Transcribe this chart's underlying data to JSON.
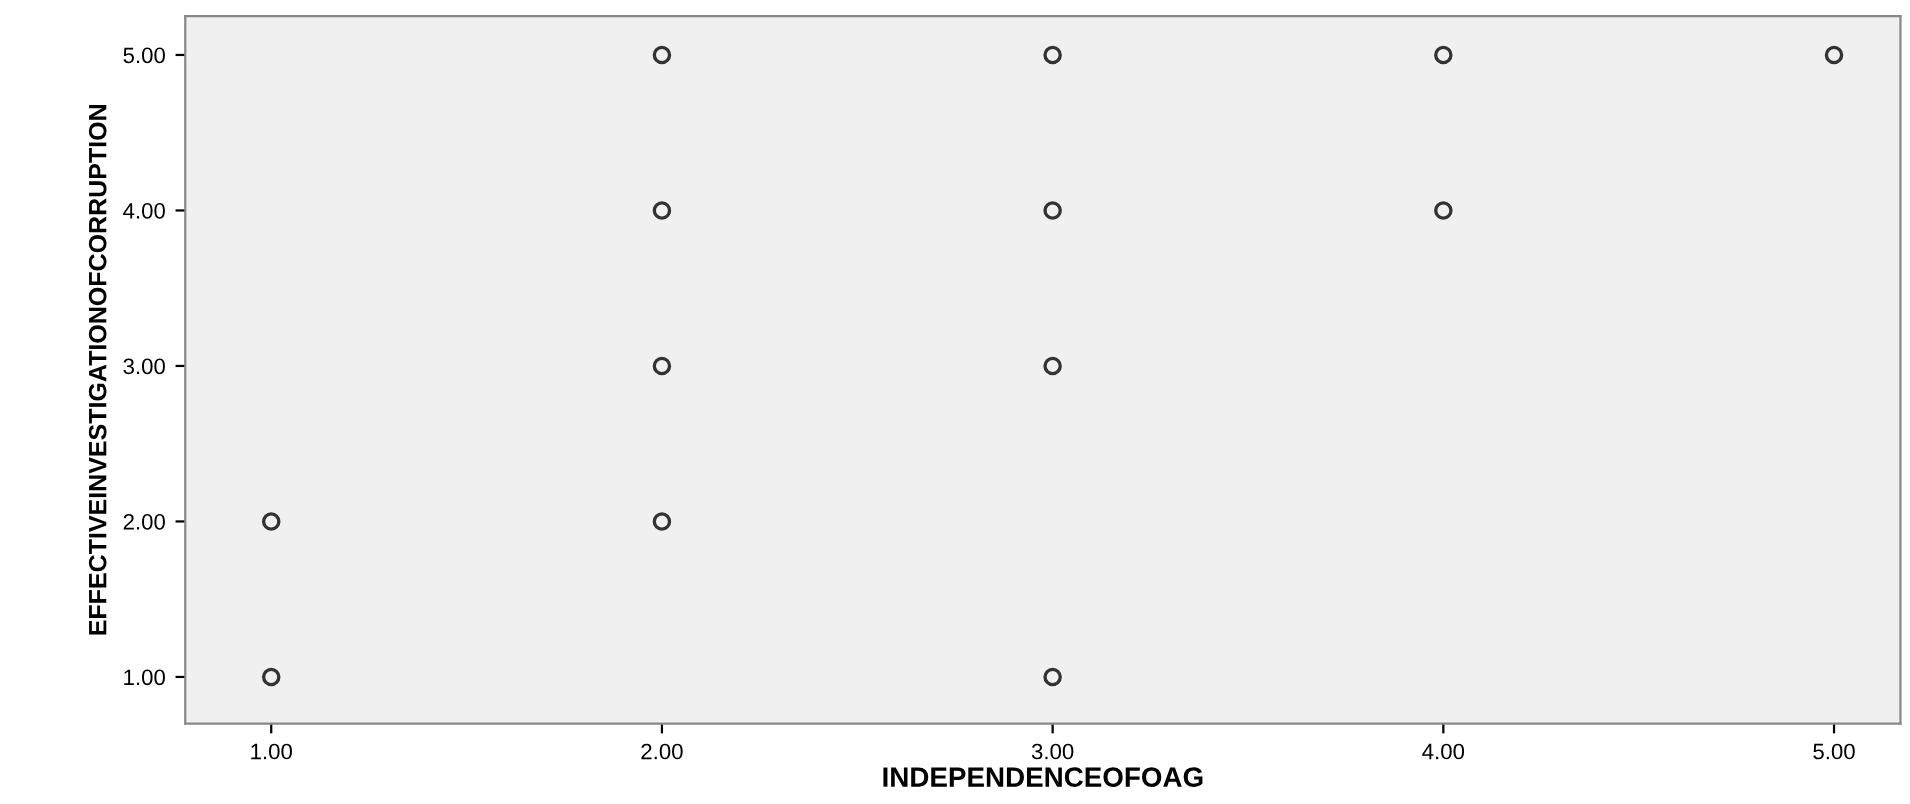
{
  "chart_data": {
    "type": "scatter",
    "xlabel": "INDEPENDENCEOFOAG",
    "ylabel": "EFFECTIVEINVESTIGATIONOFCORRUPTION",
    "x": [
      1,
      1,
      2,
      2,
      2,
      2,
      3,
      3,
      3,
      3,
      4,
      4,
      5
    ],
    "series": [
      {
        "color": "#333333",
        "values": [
          1,
          2,
          2,
          3,
          4,
          5,
          1,
          3,
          4,
          5,
          4,
          5,
          5
        ]
      }
    ],
    "marker": "circle",
    "grid": false,
    "xlim": [
      0.78,
      5.17
    ],
    "ylim": [
      0.7,
      5.25
    ],
    "xticks": [
      {
        "value": 1,
        "label": "1.00"
      },
      {
        "value": 2,
        "label": "2.00"
      },
      {
        "value": 3,
        "label": "3.00"
      },
      {
        "value": 4,
        "label": "4.00"
      },
      {
        "value": 5,
        "label": "5.00"
      }
    ],
    "yticks": [
      {
        "value": 1,
        "label": "1.00"
      },
      {
        "value": 2,
        "label": "2.00"
      },
      {
        "value": 3,
        "label": "3.00"
      },
      {
        "value": 4,
        "label": "4.00"
      },
      {
        "value": 5,
        "label": "5.00"
      }
    ]
  }
}
